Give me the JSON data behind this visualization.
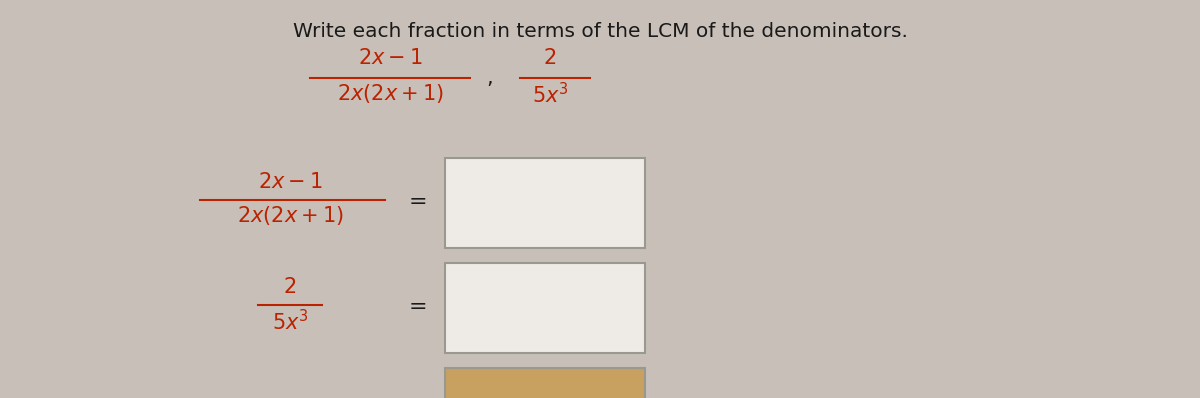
{
  "title": "Write each fraction in terms of the LCM of the denominators.",
  "title_fontsize": 14.5,
  "background_color": "#c8c0b8",
  "text_color": "#1a1a1a",
  "red_color": "#bb2200",
  "box_facecolor": "#eeeae6",
  "box_edgecolor": "#999990",
  "bottom_box_color": "#c8a060",
  "fig_width": 12.0,
  "fig_height": 3.98,
  "dpi": 100
}
